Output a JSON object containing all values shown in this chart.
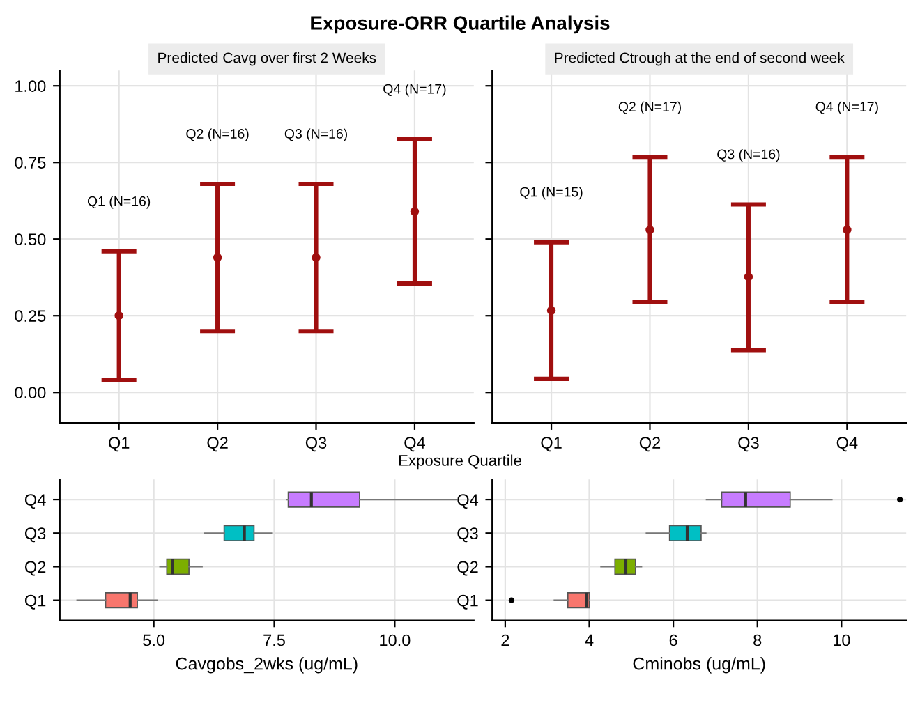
{
  "chart_data": [
    {
      "type": "scatter",
      "title": "Exposure-ORR Quartile Analysis",
      "subtitle": "Predicted Cavg over first 2 Weeks",
      "xlabel": "Exposure Quartile",
      "categories": [
        "Q1",
        "Q2",
        "Q3",
        "Q4"
      ],
      "series": [
        {
          "color": "#a00f0f",
          "values": [
            0.25,
            0.44,
            0.44,
            0.59
          ],
          "errors": [
            [
              0.04,
              0.46
            ],
            [
              0.2,
              0.68
            ],
            [
              0.2,
              0.68
            ],
            [
              0.355,
              0.826
            ]
          ]
        }
      ],
      "annotations": [
        "Q1 (N=16)",
        "Q2 (N=16)",
        "Q3 (N=16)",
        "Q4 (N=17)"
      ],
      "ylim": [
        -0.1,
        1.05
      ],
      "yticks": [
        {
          "value": 0,
          "label": "0.00"
        },
        {
          "value": 0.25,
          "label": "0.25"
        },
        {
          "value": 0.5,
          "label": "0.50"
        },
        {
          "value": 0.75,
          "label": "0.75"
        },
        {
          "value": 1,
          "label": "1.00"
        }
      ],
      "grid": true,
      "marker": "circle"
    },
    {
      "type": "scatter",
      "subtitle": "Predicted Ctrough at the end of second week",
      "categories": [
        "Q1",
        "Q2",
        "Q3",
        "Q4"
      ],
      "series": [
        {
          "color": "#a00f0f",
          "values": [
            0.267,
            0.53,
            0.377,
            0.53
          ],
          "errors": [
            [
              0.044,
              0.49
            ],
            [
              0.294,
              0.768
            ],
            [
              0.138,
              0.613
            ],
            [
              0.294,
              0.768
            ]
          ]
        }
      ],
      "annotations": [
        "Q1 (N=15)",
        "Q2 (N=17)",
        "Q3 (N=16)",
        "Q4 (N=17)"
      ],
      "ylim": [
        -0.1,
        1.05
      ],
      "yticks": [
        {
          "value": 0,
          "label": null
        },
        {
          "value": 0.25,
          "label": null
        },
        {
          "value": 0.5,
          "label": null
        },
        {
          "value": 0.75,
          "label": null
        },
        {
          "value": 1,
          "label": null
        }
      ],
      "tick_labels": "x",
      "grid": true,
      "marker": "circle"
    },
    {
      "type": "box",
      "orientation": "horizontal",
      "xlabel": "Cavgobs_2wks (ug/mL)",
      "categories": [
        "Q4",
        "Q3",
        "Q2",
        "Q1"
      ],
      "colors": [
        "#c77cff",
        "#00bfc4",
        "#7cae00",
        "#f8766d"
      ],
      "boxes": [
        {
          "low": 7.76,
          "q1": 7.79,
          "median": 8.27,
          "q3": 9.27,
          "high": 11.27
        },
        {
          "low": 6.05,
          "q1": 6.46,
          "median": 6.88,
          "q3": 7.08,
          "high": 7.44
        },
        {
          "low": 5.13,
          "q1": 5.27,
          "median": 5.39,
          "q3": 5.73,
          "high": 6.0
        },
        {
          "low": 3.41,
          "q1": 4.0,
          "median": 4.51,
          "q3": 4.66,
          "high": 5.07
        }
      ],
      "xlim": [
        3.05,
        11.64
      ],
      "xticks": [
        {
          "value": 5,
          "label": "5.0"
        },
        {
          "value": 7.5,
          "label": "7.5"
        },
        {
          "value": 10,
          "label": "10.0"
        }
      ],
      "grid": true
    },
    {
      "type": "box",
      "orientation": "horizontal",
      "xlabel": "Cminobs (ug/mL)",
      "categories": [
        "Q4",
        "Q3",
        "Q2",
        "Q1"
      ],
      "colors": [
        "#c77cff",
        "#00bfc4",
        "#7cae00",
        "#f8766d"
      ],
      "boxes": [
        {
          "low": 6.79,
          "q1": 7.15,
          "median": 7.72,
          "q3": 8.78,
          "high": 9.77,
          "outliers": [
            11.39
          ]
        },
        {
          "low": 5.36,
          "q1": 5.91,
          "median": 6.33,
          "q3": 6.66,
          "high": 6.77
        },
        {
          "low": 4.28,
          "q1": 4.61,
          "median": 4.87,
          "q3": 5.1,
          "high": 5.24
        },
        {
          "low": 3.17,
          "q1": 3.49,
          "median": 3.93,
          "q3": 4.0,
          "high": 4.0,
          "outliers": [
            2.15
          ]
        }
      ],
      "xlim": [
        1.69,
        11.54
      ],
      "xticks": [
        2,
        4,
        6,
        8,
        10
      ],
      "grid": true
    }
  ]
}
